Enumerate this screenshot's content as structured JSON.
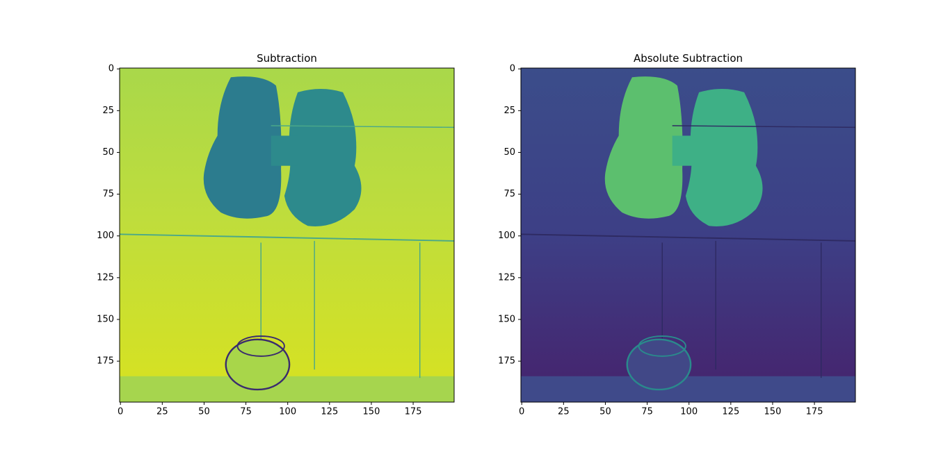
{
  "chart_data": [
    {
      "type": "image",
      "title": "Subtraction",
      "xlim": [
        -0.5,
        199.5
      ],
      "ylim": [
        199.5,
        -0.5
      ],
      "xticks": [
        0,
        25,
        50,
        75,
        100,
        125,
        150,
        175
      ],
      "yticks": [
        0,
        25,
        50,
        75,
        100,
        125,
        150,
        175
      ]
    },
    {
      "type": "image",
      "title": "Absolute Subtraction",
      "xlim": [
        -0.5,
        199.5
      ],
      "ylim": [
        199.5,
        -0.5
      ],
      "xticks": [
        0,
        25,
        50,
        75,
        100,
        125,
        150,
        175
      ],
      "yticks": [
        0,
        25,
        50,
        75,
        100,
        125,
        150,
        175
      ]
    }
  ]
}
